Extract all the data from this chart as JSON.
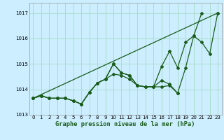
{
  "xlabel": "Graphe pression niveau de la mer (hPa)",
  "bg_color": "#cceeff",
  "grid_color": "#aaddcc",
  "line_color": "#1a5c1a",
  "xlim": [
    -0.5,
    23.5
  ],
  "ylim": [
    1013.0,
    1017.4
  ],
  "yticks": [
    1013,
    1014,
    1015,
    1016,
    1017
  ],
  "xticks": [
    0,
    1,
    2,
    3,
    4,
    5,
    6,
    7,
    8,
    9,
    10,
    11,
    12,
    13,
    14,
    15,
    16,
    17,
    18,
    19,
    20,
    21,
    22,
    23
  ],
  "series": [
    {
      "x": [
        0,
        1,
        2,
        3,
        4,
        5,
        6,
        7,
        8,
        9,
        10,
        11,
        12,
        13,
        14,
        15,
        16,
        17,
        18,
        19,
        20,
        21,
        22,
        23
      ],
      "y": [
        1013.65,
        1013.75,
        1013.65,
        1013.65,
        1013.65,
        1013.55,
        1013.42,
        1013.88,
        1014.25,
        1014.4,
        1015.0,
        1014.65,
        1014.55,
        1014.15,
        1014.1,
        1014.1,
        1014.9,
        1015.5,
        1014.85,
        1015.85,
        1016.1,
        1017.0,
        null,
        null
      ]
    },
    {
      "x": [
        0,
        1,
        2,
        3,
        4,
        5,
        6,
        7,
        8,
        9,
        10,
        11,
        12,
        13,
        14,
        15,
        16,
        17,
        18,
        19,
        20,
        21,
        22,
        23
      ],
      "y": [
        1013.65,
        1013.75,
        1013.65,
        1013.65,
        1013.65,
        1013.55,
        1013.42,
        1013.88,
        1014.25,
        1014.4,
        1015.0,
        1014.65,
        1014.55,
        1014.15,
        1014.1,
        1014.1,
        1014.35,
        1014.2,
        1013.85,
        1014.85,
        1016.1,
        1015.85,
        1015.4,
        1017.0
      ]
    },
    {
      "x": [
        0,
        1,
        2,
        3,
        4,
        5,
        6,
        7,
        8,
        9,
        10,
        11,
        12,
        13,
        14,
        15,
        16,
        17,
        18,
        19,
        20,
        21,
        22,
        23
      ],
      "y": [
        1013.65,
        1013.75,
        1013.65,
        1013.65,
        1013.65,
        1013.55,
        1013.42,
        1013.88,
        1014.25,
        1014.4,
        1014.6,
        1014.55,
        1014.4,
        1014.15,
        1014.1,
        1014.1,
        1014.1,
        1014.15,
        1013.85,
        null,
        null,
        null,
        null,
        null
      ]
    },
    {
      "x": [
        0,
        23
      ],
      "y": [
        1013.65,
        1017.0
      ]
    }
  ]
}
